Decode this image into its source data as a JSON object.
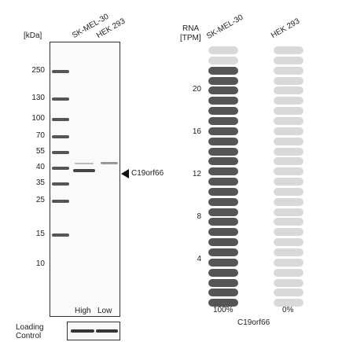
{
  "blot": {
    "unit_label": "[kDa]",
    "lanes": [
      "SK-MEL-30",
      "HEK 293"
    ],
    "markers": [
      "250",
      "130",
      "100",
      "70",
      "55",
      "40",
      "35",
      "25",
      "15",
      "10"
    ],
    "target_label": "C19orf66",
    "bottom_labels": [
      "High",
      "Low"
    ],
    "loading_control_line1": "Loading",
    "loading_control_line2": "Control"
  },
  "rna": {
    "header_line1": "RNA",
    "header_line2": "[TPM]",
    "columns": [
      "SK-MEL-30",
      "HEK 293"
    ],
    "axis_ticks": [
      "20",
      "16",
      "12",
      "8",
      "4"
    ],
    "percentages": [
      "100%",
      "0%"
    ],
    "gene": "C19orf66",
    "filled_color": "#555555",
    "empty_color": "#d9d9d9",
    "filled_fraction": [
      0.92,
      0.0
    ]
  }
}
